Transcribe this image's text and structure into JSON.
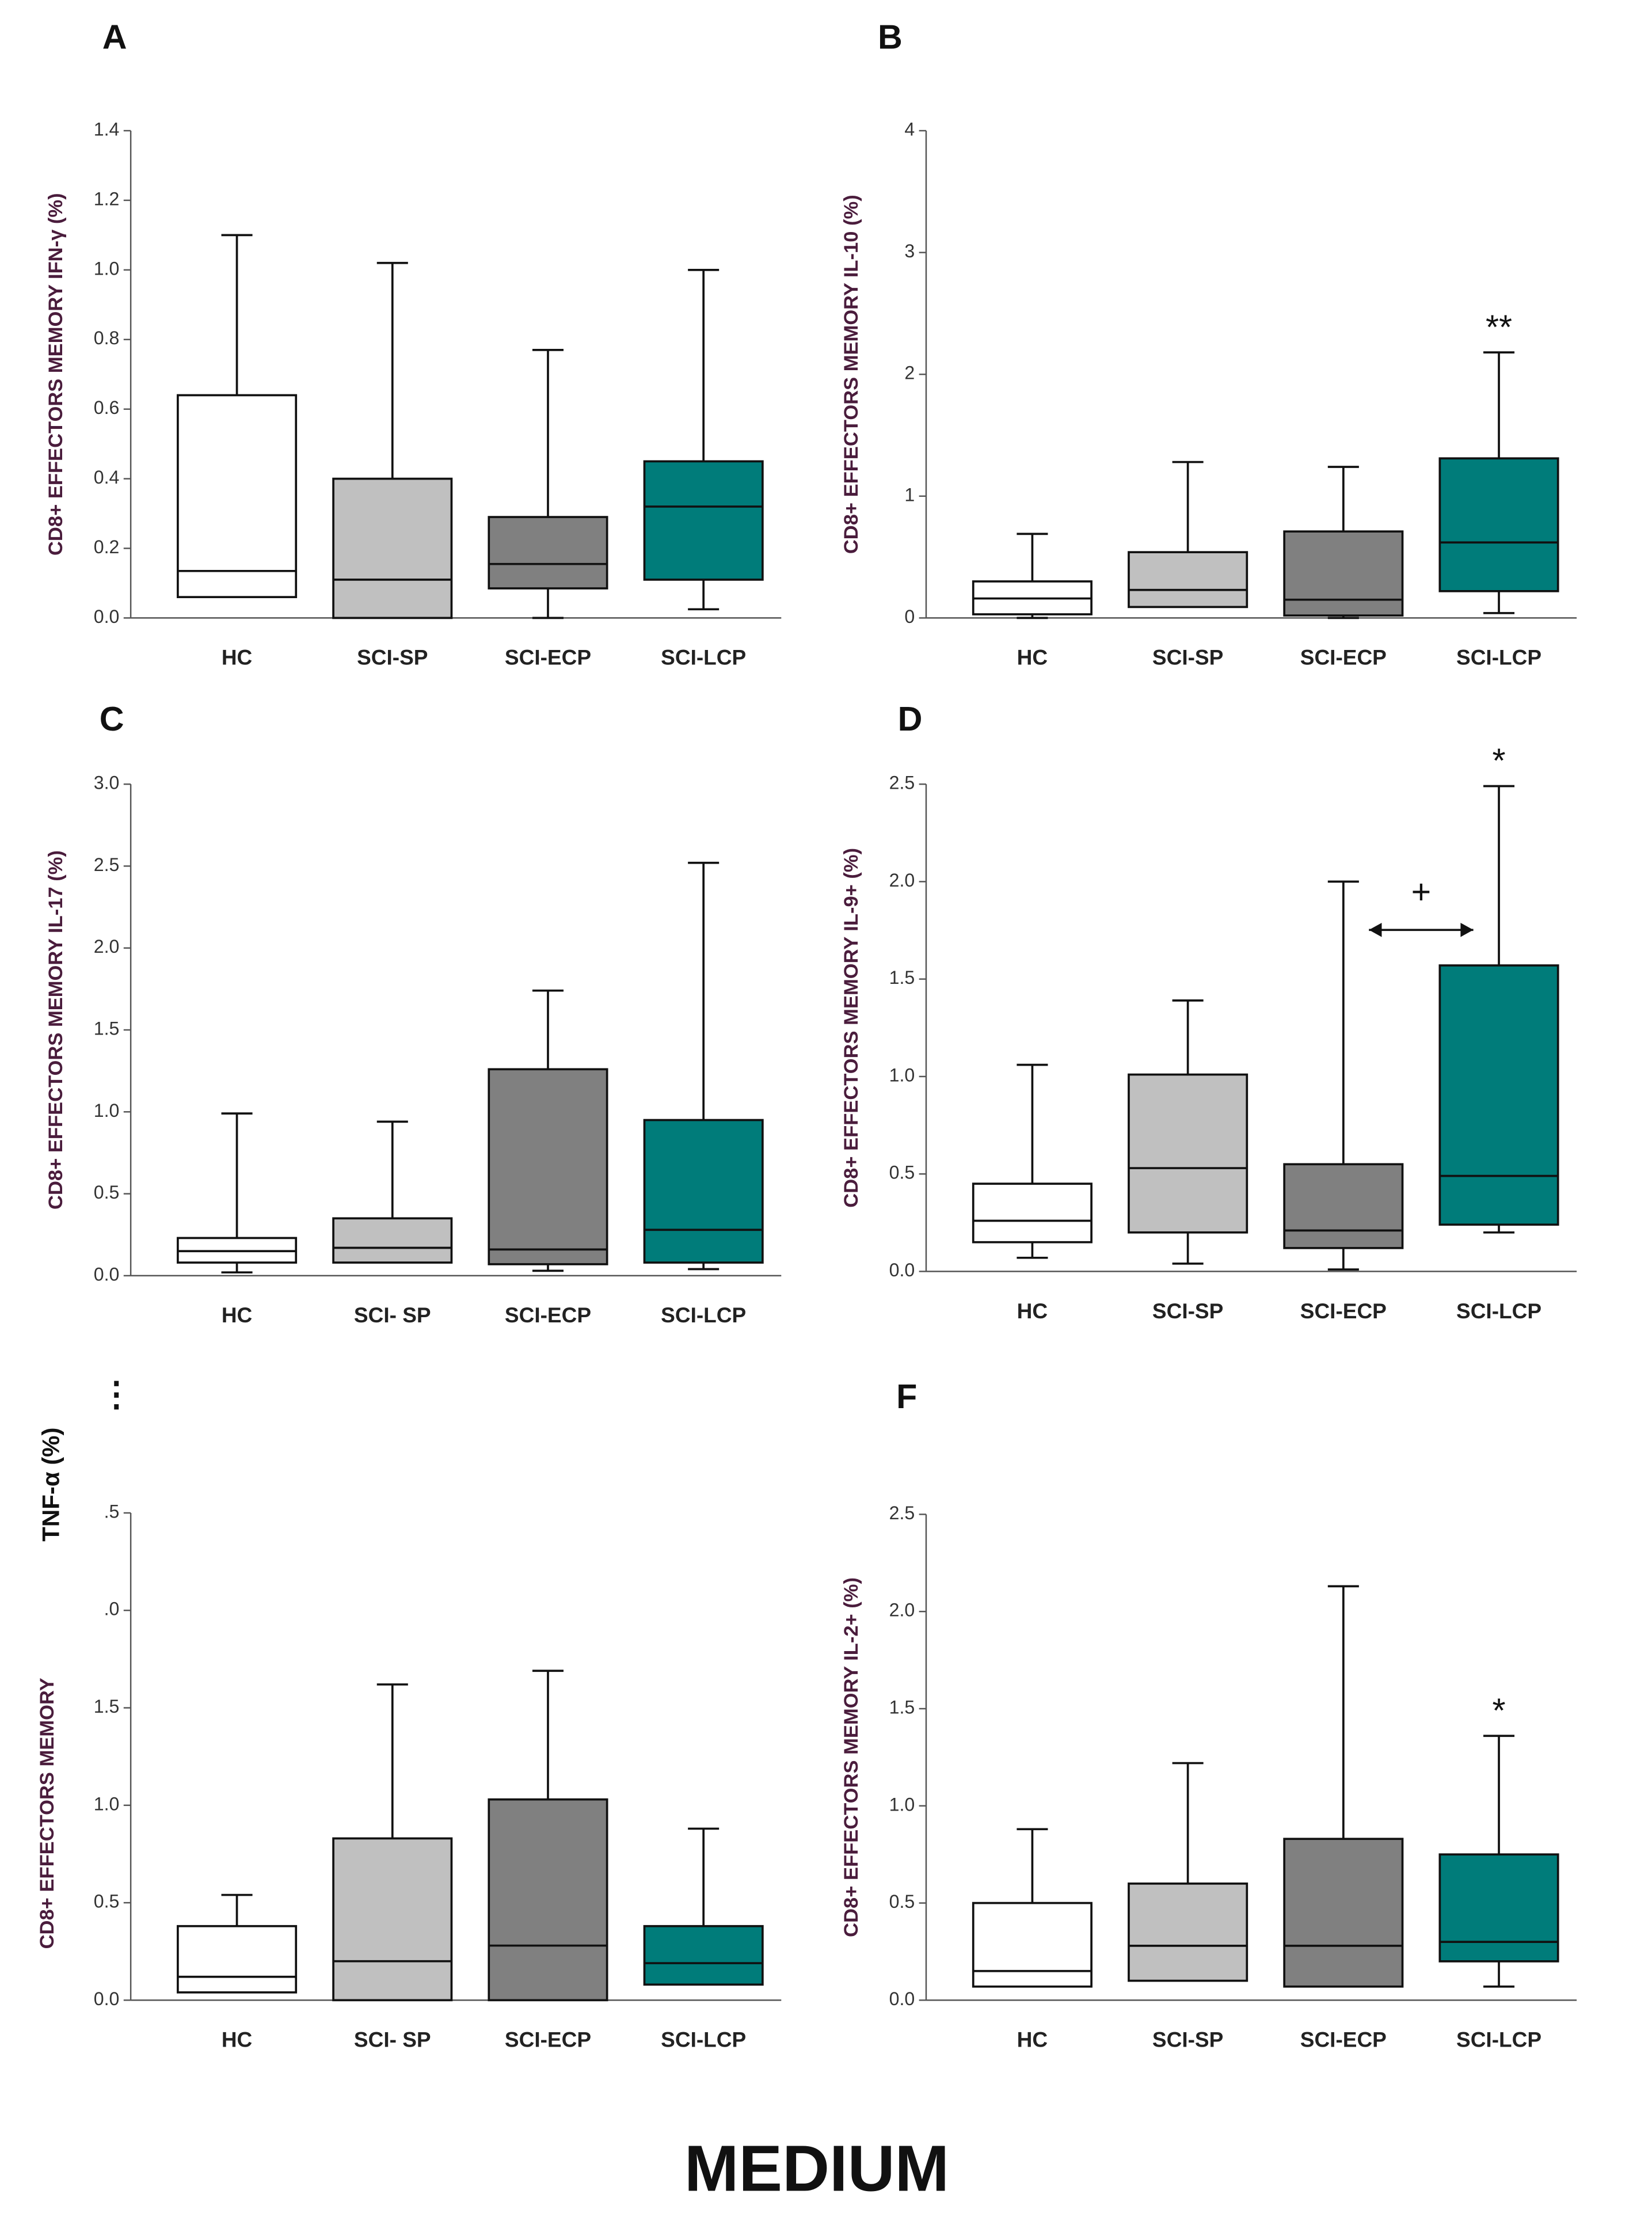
{
  "chart_data": [
    {
      "type": "box",
      "panel": "A",
      "ylabel": "CD8+ EFFECTORS MEMORY IFN-γ (%)",
      "categories": [
        "HC",
        "SCI-SP",
        "SCI-ECP",
        "SCI-LCP"
      ],
      "colors": [
        "#ffffff",
        "#c0c0c0",
        "#808080",
        "#007c7a"
      ],
      "ylim": [
        0,
        1.4
      ],
      "yticks": [
        {
          "value": 0,
          "label": "0.0"
        },
        0.2,
        0.4,
        0.6,
        0.8,
        {
          "value": 1,
          "label": "1.0"
        },
        1.2,
        1.4
      ],
      "boxes": [
        {
          "min": 0.06,
          "q1": 0.06,
          "median": 0.135,
          "q3": 0.64,
          "max": 1.1
        },
        {
          "min": 0,
          "q1": 0,
          "median": 0.11,
          "q3": 0.4,
          "max": 1.02
        },
        {
          "min": 0,
          "q1": 0.085,
          "median": 0.155,
          "q3": 0.29,
          "max": 0.77
        },
        {
          "min": 0.025,
          "q1": 0.11,
          "median": 0.32,
          "q3": 0.45,
          "max": 1.0
        }
      ]
    },
    {
      "type": "box",
      "panel": "B",
      "ylabel": "CD8+ EFFECTORS MEMORY IL-10 (%)",
      "categories": [
        "HC",
        "SCI-SP",
        "SCI-ECP",
        "SCI-LCP"
      ],
      "colors": [
        "#ffffff",
        "#c0c0c0",
        "#808080",
        "#007c7a"
      ],
      "ylim": [
        0,
        4
      ],
      "yticks": [
        0,
        1,
        2,
        3,
        4
      ],
      "boxes": [
        {
          "min": 0,
          "q1": 0.03,
          "median": 0.16,
          "q3": 0.3,
          "max": 0.69
        },
        {
          "min": 0.09,
          "q1": 0.09,
          "median": 0.23,
          "q3": 0.54,
          "max": 1.28
        },
        {
          "min": 0,
          "q1": 0.02,
          "median": 0.15,
          "q3": 0.71,
          "max": 1.24
        },
        {
          "min": 0.04,
          "q1": 0.22,
          "median": 0.62,
          "q3": 1.31,
          "max": 2.18
        }
      ],
      "annotations": [
        {
          "text": "**",
          "category": "SCI-LCP"
        }
      ]
    },
    {
      "type": "box",
      "panel": "C",
      "ylabel": "CD8+ EFFECTORS MEMORY IL-17 (%)",
      "categories": [
        "HC",
        "SCI- SP",
        "SCI-ECP",
        "SCI-LCP"
      ],
      "colors": [
        "#ffffff",
        "#c0c0c0",
        "#808080",
        "#007c7a"
      ],
      "ylim": [
        0,
        3
      ],
      "yticks": [
        {
          "value": 0,
          "label": "0.0"
        },
        0.5,
        {
          "value": 1,
          "label": "1.0"
        },
        1.5,
        {
          "value": 2,
          "label": "2.0"
        },
        2.5,
        {
          "value": 3,
          "label": "3.0"
        }
      ],
      "boxes": [
        {
          "min": 0.02,
          "q1": 0.08,
          "median": 0.15,
          "q3": 0.23,
          "max": 0.99
        },
        {
          "min": 0.08,
          "q1": 0.08,
          "median": 0.17,
          "q3": 0.35,
          "max": 0.94
        },
        {
          "min": 0.03,
          "q1": 0.07,
          "median": 0.16,
          "q3": 1.26,
          "max": 1.74
        },
        {
          "min": 0.04,
          "q1": 0.08,
          "median": 0.28,
          "q3": 0.95,
          "max": 2.52
        }
      ]
    },
    {
      "type": "box",
      "panel": "D",
      "ylabel": "CD8+ EFFECTORS MEMORY IL-9+ (%)",
      "categories": [
        "HC",
        "SCI-SP",
        "SCI-ECP",
        "SCI-LCP"
      ],
      "colors": [
        "#ffffff",
        "#c0c0c0",
        "#808080",
        "#007c7a"
      ],
      "ylim": [
        0,
        2.5
      ],
      "yticks": [
        {
          "value": 0,
          "label": "0.0"
        },
        0.5,
        {
          "value": 1,
          "label": "1.0"
        },
        1.5,
        {
          "value": 2,
          "label": "2.0"
        },
        2.5
      ],
      "boxes": [
        {
          "min": 0.07,
          "q1": 0.15,
          "median": 0.26,
          "q3": 0.45,
          "max": 1.06
        },
        {
          "min": 0.04,
          "q1": 0.2,
          "median": 0.53,
          "q3": 1.01,
          "max": 1.39
        },
        {
          "min": 0.01,
          "q1": 0.12,
          "median": 0.21,
          "q3": 0.55,
          "max": 2.0
        },
        {
          "min": 0.2,
          "q1": 0.24,
          "median": 0.49,
          "q3": 1.57,
          "max": 2.49
        }
      ],
      "annotations": [
        {
          "text": "*",
          "category": "SCI-LCP"
        },
        {
          "text": "+",
          "from": "SCI-ECP",
          "to": "SCI-LCP"
        }
      ]
    },
    {
      "type": "box",
      "panel": "⋮",
      "ylabel": "CD8+ EFFECTORS MEMORY",
      "ylabel2": "TNF-α (%)",
      "categories": [
        "HC",
        "SCI- SP",
        "SCI-ECP",
        "SCI-LCP"
      ],
      "colors": [
        "#ffffff",
        "#c0c0c0",
        "#808080",
        "#007c7a"
      ],
      "ylim": [
        0,
        2.5
      ],
      "yticks": [
        {
          "value": 0,
          "label": "0.0"
        },
        0.5,
        {
          "value": 1,
          "label": "1.0"
        },
        1.5,
        {
          "value": 2,
          "label": ".0"
        },
        {
          "value": 2.5,
          "label": ".5"
        }
      ],
      "boxes": [
        {
          "min": 0.04,
          "q1": 0.04,
          "median": 0.12,
          "q3": 0.38,
          "max": 0.54
        },
        {
          "min": 0,
          "q1": 0,
          "median": 0.2,
          "q3": 0.83,
          "max": 1.62
        },
        {
          "min": 0,
          "q1": 0,
          "median": 0.28,
          "q3": 1.03,
          "max": 1.69
        },
        {
          "min": 0.08,
          "q1": 0.08,
          "median": 0.19,
          "q3": 0.38,
          "max": 0.88
        }
      ]
    },
    {
      "type": "box",
      "panel": "F",
      "ylabel": "CD8+ EFFECTORS MEMORY IL-2+ (%)",
      "categories": [
        "HC",
        "SCI-SP",
        "SCI-ECP",
        "SCI-LCP"
      ],
      "colors": [
        "#ffffff",
        "#c0c0c0",
        "#808080",
        "#007c7a"
      ],
      "ylim": [
        0,
        2.5
      ],
      "yticks": [
        {
          "value": 0,
          "label": "0.0"
        },
        0.5,
        {
          "value": 1,
          "label": "1.0"
        },
        1.5,
        {
          "value": 2,
          "label": "2.0"
        },
        2.5
      ],
      "boxes": [
        {
          "min": 0.07,
          "q1": 0.07,
          "median": 0.15,
          "q3": 0.5,
          "max": 0.88
        },
        {
          "min": 0.1,
          "q1": 0.1,
          "median": 0.28,
          "q3": 0.6,
          "max": 1.22
        },
        {
          "min": 0.07,
          "q1": 0.07,
          "median": 0.28,
          "q3": 0.83,
          "max": 2.13
        },
        {
          "min": 0.07,
          "q1": 0.2,
          "median": 0.3,
          "q3": 0.75,
          "max": 1.36
        }
      ],
      "annotations": [
        {
          "text": "*",
          "category": "SCI-LCP"
        }
      ]
    }
  ],
  "footer": "MEDIUM"
}
